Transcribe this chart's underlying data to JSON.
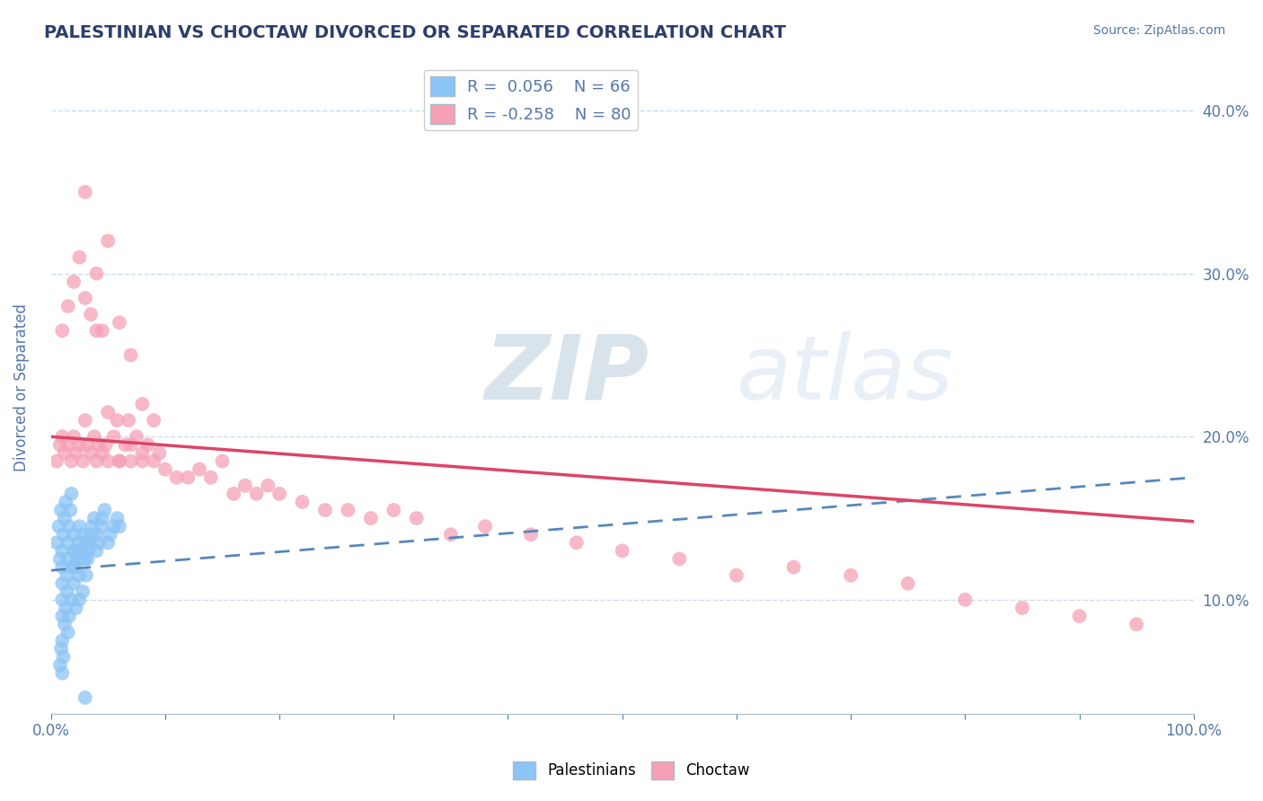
{
  "title": "PALESTINIAN VS CHOCTAW DIVORCED OR SEPARATED CORRELATION CHART",
  "source_text": "Source: ZipAtlas.com",
  "ylabel": "Divorced or Separated",
  "xlim": [
    0.0,
    1.0
  ],
  "ylim": [
    0.03,
    0.43
  ],
  "x_ticks": [
    0.0,
    0.1,
    0.2,
    0.3,
    0.4,
    0.5,
    0.6,
    0.7,
    0.8,
    0.9,
    1.0
  ],
  "x_tick_labels": [
    "0.0%",
    "",
    "",
    "",
    "",
    "",
    "",
    "",
    "",
    "",
    "100.0%"
  ],
  "y_ticks": [
    0.1,
    0.2,
    0.3,
    0.4
  ],
  "y_tick_labels": [
    "10.0%",
    "20.0%",
    "30.0%",
    "40.0%"
  ],
  "legend_r1": "R =  0.056",
  "legend_n1": "N = 66",
  "legend_r2": "R = -0.258",
  "legend_n2": "N = 80",
  "blue_color": "#8BC4F5",
  "pink_color": "#F5A0B5",
  "blue_line_color": "#5588BB",
  "pink_line_color": "#DD4466",
  "title_color": "#2C3E6B",
  "tick_color": "#5577AA",
  "grid_color": "#CCDDEE",
  "watermark_color": "#D8E8F5",
  "palestinians_x": [
    0.005,
    0.007,
    0.008,
    0.009,
    0.01,
    0.01,
    0.01,
    0.01,
    0.01,
    0.011,
    0.012,
    0.013,
    0.014,
    0.015,
    0.015,
    0.016,
    0.017,
    0.018,
    0.019,
    0.02,
    0.02,
    0.021,
    0.022,
    0.023,
    0.024,
    0.025,
    0.025,
    0.026,
    0.027,
    0.028,
    0.03,
    0.03,
    0.031,
    0.032,
    0.033,
    0.034,
    0.035,
    0.036,
    0.038,
    0.04,
    0.04,
    0.042,
    0.044,
    0.045,
    0.047,
    0.05,
    0.052,
    0.055,
    0.058,
    0.06,
    0.008,
    0.009,
    0.01,
    0.01,
    0.011,
    0.012,
    0.013,
    0.014,
    0.015,
    0.016,
    0.018,
    0.02,
    0.022,
    0.025,
    0.028,
    0.03
  ],
  "palestinians_y": [
    0.135,
    0.145,
    0.125,
    0.155,
    0.13,
    0.12,
    0.11,
    0.1,
    0.09,
    0.14,
    0.15,
    0.16,
    0.115,
    0.125,
    0.135,
    0.145,
    0.155,
    0.165,
    0.12,
    0.13,
    0.14,
    0.12,
    0.13,
    0.125,
    0.135,
    0.145,
    0.115,
    0.125,
    0.13,
    0.14,
    0.125,
    0.135,
    0.115,
    0.125,
    0.13,
    0.135,
    0.14,
    0.145,
    0.15,
    0.13,
    0.14,
    0.135,
    0.145,
    0.15,
    0.155,
    0.135,
    0.14,
    0.145,
    0.15,
    0.145,
    0.06,
    0.07,
    0.055,
    0.075,
    0.065,
    0.085,
    0.095,
    0.105,
    0.08,
    0.09,
    0.1,
    0.11,
    0.095,
    0.1,
    0.105,
    0.04
  ],
  "choctaw_x": [
    0.005,
    0.008,
    0.01,
    0.012,
    0.015,
    0.018,
    0.02,
    0.022,
    0.025,
    0.028,
    0.03,
    0.032,
    0.035,
    0.038,
    0.04,
    0.042,
    0.045,
    0.048,
    0.05,
    0.055,
    0.058,
    0.06,
    0.065,
    0.068,
    0.07,
    0.075,
    0.08,
    0.085,
    0.09,
    0.095,
    0.01,
    0.015,
    0.02,
    0.025,
    0.03,
    0.035,
    0.04,
    0.045,
    0.05,
    0.06,
    0.07,
    0.08,
    0.09,
    0.1,
    0.11,
    0.12,
    0.13,
    0.14,
    0.15,
    0.16,
    0.17,
    0.18,
    0.19,
    0.2,
    0.22,
    0.24,
    0.26,
    0.28,
    0.3,
    0.32,
    0.35,
    0.38,
    0.42,
    0.46,
    0.5,
    0.55,
    0.6,
    0.65,
    0.7,
    0.75,
    0.8,
    0.85,
    0.9,
    0.95,
    0.03,
    0.04,
    0.05,
    0.06,
    0.07,
    0.08
  ],
  "choctaw_y": [
    0.185,
    0.195,
    0.2,
    0.19,
    0.195,
    0.185,
    0.2,
    0.19,
    0.195,
    0.185,
    0.21,
    0.195,
    0.19,
    0.2,
    0.185,
    0.195,
    0.19,
    0.195,
    0.185,
    0.2,
    0.21,
    0.185,
    0.195,
    0.21,
    0.195,
    0.2,
    0.185,
    0.195,
    0.21,
    0.19,
    0.265,
    0.28,
    0.295,
    0.31,
    0.285,
    0.275,
    0.265,
    0.265,
    0.32,
    0.27,
    0.25,
    0.22,
    0.185,
    0.18,
    0.175,
    0.175,
    0.18,
    0.175,
    0.185,
    0.165,
    0.17,
    0.165,
    0.17,
    0.165,
    0.16,
    0.155,
    0.155,
    0.15,
    0.155,
    0.15,
    0.14,
    0.145,
    0.14,
    0.135,
    0.13,
    0.125,
    0.115,
    0.12,
    0.115,
    0.11,
    0.1,
    0.095,
    0.09,
    0.085,
    0.35,
    0.3,
    0.215,
    0.185,
    0.185,
    0.19
  ],
  "pal_trend_x0": 0.0,
  "pal_trend_x1": 1.0,
  "pal_trend_y0": 0.118,
  "pal_trend_y1": 0.175,
  "cho_trend_x0": 0.0,
  "cho_trend_x1": 1.0,
  "cho_trend_y0": 0.2,
  "cho_trend_y1": 0.148
}
